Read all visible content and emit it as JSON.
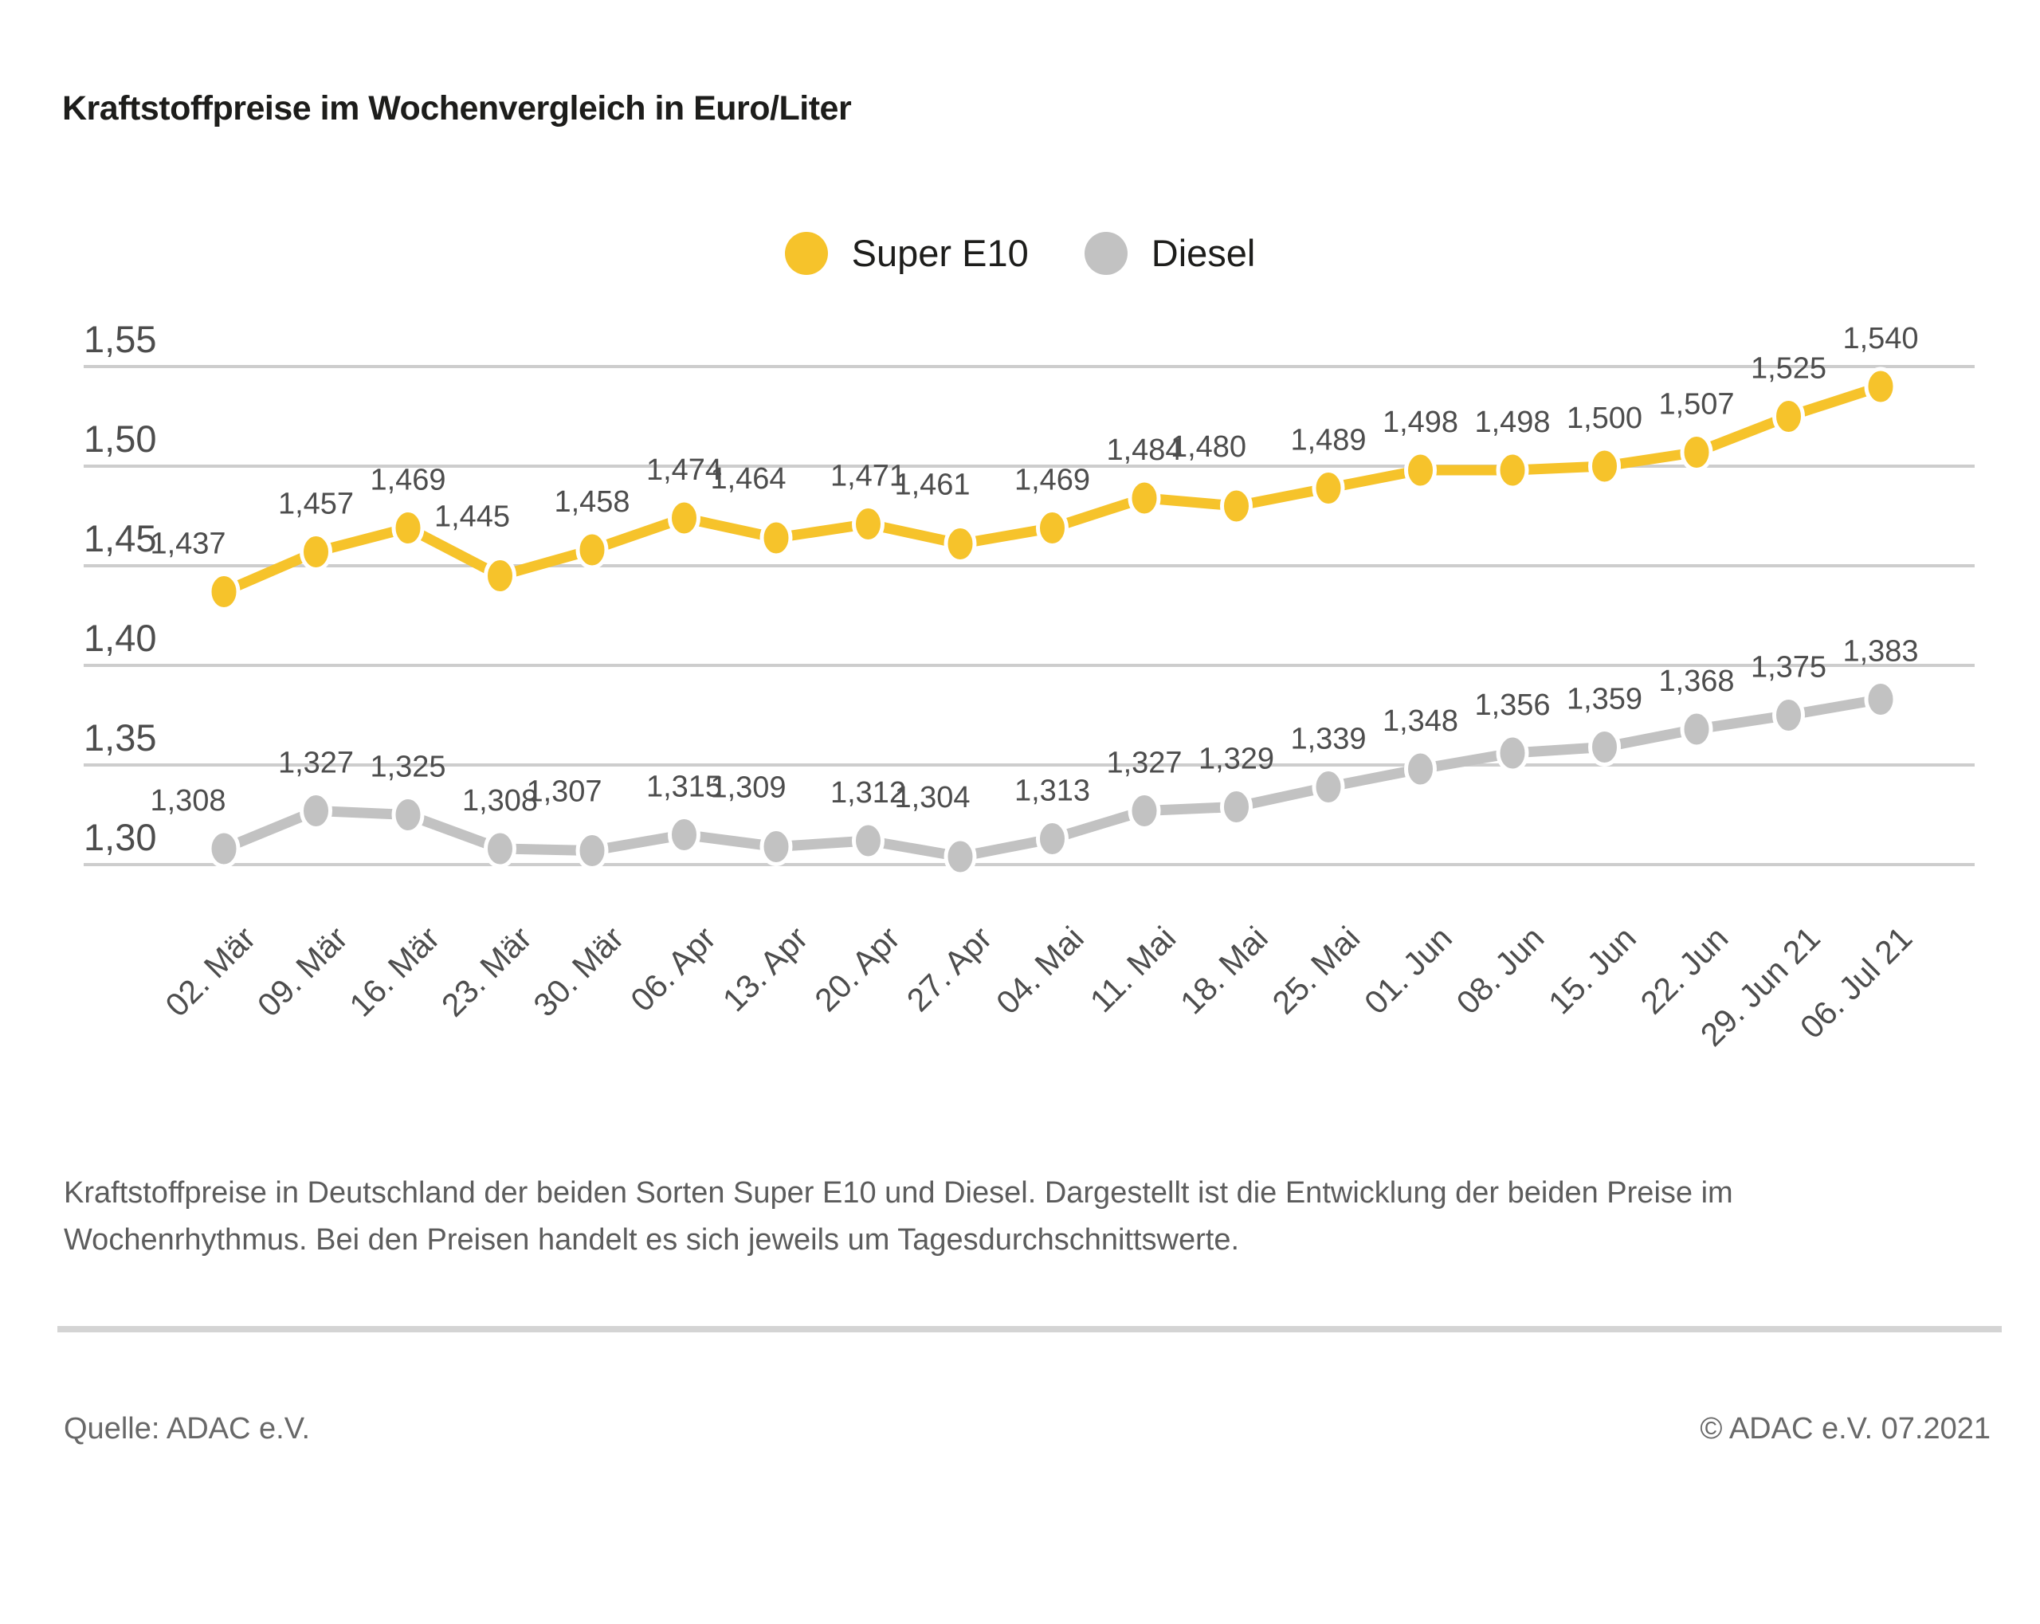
{
  "title": "Kraftstoffpreise im Wochenvergleich in Euro/Liter",
  "legend": [
    {
      "label": "Super E10",
      "color": "#F6C32B"
    },
    {
      "label": "Diesel",
      "color": "#C2C2C2"
    }
  ],
  "chart_data": {
    "type": "line",
    "title": "Kraftstoffpreise im Wochenvergleich in Euro/Liter",
    "unit": "Euro/Liter",
    "grid": true,
    "legend_position": "top",
    "categories": [
      "02. Mär",
      "09. Mär",
      "16. Mär",
      "23. Mär",
      "30. Mär",
      "06. Apr",
      "13. Apr",
      "20. Apr",
      "27. Apr",
      "04. Mai",
      "11. Mai",
      "18. Mai",
      "25. Mai",
      "01. Jun",
      "08. Jun",
      "15. Jun",
      "22. Jun",
      "29. Jun 21",
      "06. Jul 21"
    ],
    "series": [
      {
        "name": "Super E10",
        "color": "#F6C32B",
        "values": [
          1.437,
          1.457,
          1.469,
          1.445,
          1.458,
          1.474,
          1.464,
          1.471,
          1.461,
          1.469,
          1.484,
          1.48,
          1.489,
          1.498,
          1.498,
          1.5,
          1.507,
          1.525,
          1.54
        ],
        "labels": [
          "1,437",
          "1,457",
          "1,469",
          "1,445",
          "1,458",
          "1,474",
          "1,464",
          "1,471",
          "1,461",
          "1,469",
          "1,484",
          "1,480",
          "1,489",
          "1,498",
          "1,498",
          "1,500",
          "1,507",
          "1,525",
          "1,540"
        ]
      },
      {
        "name": "Diesel",
        "color": "#C2C2C2",
        "values": [
          1.308,
          1.327,
          1.325,
          1.308,
          1.307,
          1.315,
          1.309,
          1.312,
          1.304,
          1.313,
          1.327,
          1.329,
          1.339,
          1.348,
          1.356,
          1.359,
          1.368,
          1.375,
          1.383
        ],
        "labels": [
          "1,308",
          "1,327",
          "1,325",
          "1,308",
          "1,307",
          "1,315",
          "1,309",
          "1,312",
          "1,304",
          "1,313",
          "1,327",
          "1,329",
          "1,339",
          "1,348",
          "1,356",
          "1,359",
          "1,368",
          "1,375",
          "1,383"
        ]
      }
    ],
    "yticks": [
      {
        "value": 1.55,
        "label": "1,55"
      },
      {
        "value": 1.5,
        "label": "1,50"
      },
      {
        "value": 1.45,
        "label": "1,45"
      },
      {
        "value": 1.4,
        "label": "1,40"
      },
      {
        "value": 1.35,
        "label": "1,35"
      },
      {
        "value": 1.3,
        "label": "1,30"
      }
    ],
    "ylim": [
      1.28,
      1.57
    ],
    "colors": {
      "gridline": "#CDCDCD",
      "tick_text": "#4d4d4d",
      "data_label_text": "#4d4d4d"
    }
  },
  "caption": "Kraftstoffpreise in Deutschland der beiden Sorten Super E10 und Diesel. Dargestellt ist die Entwicklung der beiden Preise im Wochenrhythmus. Bei den Preisen handelt es sich jeweils um Tagesdurchschnittswerte.",
  "footer": {
    "source": "Quelle: ADAC e.V.",
    "copyright": "© ADAC e.V. 07.2021"
  }
}
